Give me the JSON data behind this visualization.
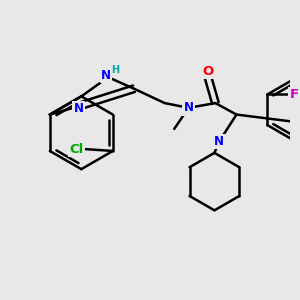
{
  "bg_color": "#e8e8e8",
  "bond_color": "#000000",
  "bond_width": 1.8,
  "figsize": [
    3.0,
    3.0
  ],
  "dpi": 100,
  "colors": {
    "N": "#0000ff",
    "O": "#ff0000",
    "F": "#cc00cc",
    "Cl": "#00aa00",
    "C": "#000000",
    "H": "#00aaaa"
  }
}
